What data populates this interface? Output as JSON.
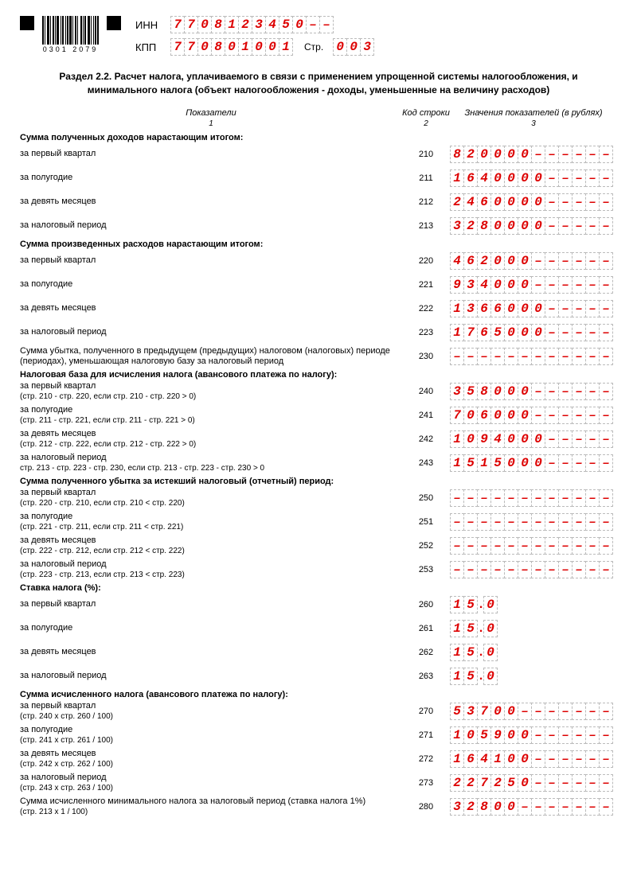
{
  "header": {
    "barcode_num": "0301 2079",
    "inn_label": "ИНН",
    "inn": [
      "7",
      "7",
      "0",
      "8",
      "1",
      "2",
      "3",
      "4",
      "5",
      "0",
      "–",
      "–"
    ],
    "kpp_label": "КПП",
    "kpp": [
      "7",
      "7",
      "0",
      "8",
      "0",
      "1",
      "0",
      "0",
      "1"
    ],
    "str_label": "Стр.",
    "str": [
      "0",
      "0",
      "3"
    ]
  },
  "section_title": "Раздел 2.2. Расчет налога, уплачиваемого в связи с применением упрощенной системы налогообложения, и минимального налога (объект налогообложения - доходы, уменьшенные на величину расходов)",
  "col_heads": {
    "c1": "Показатели",
    "c2": "Код строки",
    "c3": "Значения показателей (в рублях)"
  },
  "col_nums": {
    "c1": "1",
    "c2": "2",
    "c3": "3"
  },
  "groups": [
    {
      "title": "Сумма полученных доходов нарастающим итогом:",
      "rows": [
        {
          "label": "за первый квартал",
          "code": "210",
          "cells": [
            "8",
            "2",
            "0",
            "0",
            "0",
            "0",
            "–",
            "–",
            "–",
            "–",
            "–",
            "–"
          ]
        },
        {
          "label": "за полугодие",
          "code": "211",
          "cells": [
            "1",
            "6",
            "4",
            "0",
            "0",
            "0",
            "0",
            "–",
            "–",
            "–",
            "–",
            "–"
          ]
        },
        {
          "label": "за девять месяцев",
          "code": "212",
          "cells": [
            "2",
            "4",
            "6",
            "0",
            "0",
            "0",
            "0",
            "–",
            "–",
            "–",
            "–",
            "–"
          ]
        },
        {
          "label": "за налоговый период",
          "code": "213",
          "cells": [
            "3",
            "2",
            "8",
            "0",
            "0",
            "0",
            "0",
            "–",
            "–",
            "–",
            "–",
            "–"
          ]
        }
      ]
    },
    {
      "title": "Сумма произведенных расходов нарастающим итогом:",
      "rows": [
        {
          "label": "за первый квартал",
          "code": "220",
          "cells": [
            "4",
            "6",
            "2",
            "0",
            "0",
            "0",
            "–",
            "–",
            "–",
            "–",
            "–",
            "–"
          ]
        },
        {
          "label": "за полугодие",
          "code": "221",
          "cells": [
            "9",
            "3",
            "4",
            "0",
            "0",
            "0",
            "–",
            "–",
            "–",
            "–",
            "–",
            "–"
          ]
        },
        {
          "label": "за девять месяцев",
          "code": "222",
          "cells": [
            "1",
            "3",
            "6",
            "6",
            "0",
            "0",
            "0",
            "–",
            "–",
            "–",
            "–",
            "–"
          ]
        },
        {
          "label": "за налоговый период",
          "code": "223",
          "cells": [
            "1",
            "7",
            "6",
            "5",
            "0",
            "0",
            "0",
            "–",
            "–",
            "–",
            "–",
            "–"
          ]
        }
      ]
    },
    {
      "title": "",
      "rows": [
        {
          "label": "Сумма убытка, полученного в предыдущем (предыдущих) налоговом (налоговых) периоде (периодах), уменьшающая налоговую базу за налоговый период",
          "code": "230",
          "cells": [
            "–",
            "–",
            "–",
            "–",
            "–",
            "–",
            "–",
            "–",
            "–",
            "–",
            "–",
            "–"
          ]
        }
      ]
    },
    {
      "title": "Налоговая база для исчисления налога (авансового платежа по налогу):",
      "rows": [
        {
          "label": "за первый квартал",
          "sub": "(стр. 210 - стр. 220, если стр. 210 - стр. 220 > 0)",
          "code": "240",
          "cells": [
            "3",
            "5",
            "8",
            "0",
            "0",
            "0",
            "–",
            "–",
            "–",
            "–",
            "–",
            "–"
          ]
        },
        {
          "label": "за полугодие",
          "sub": "(стр. 211 - стр. 221, если стр. 211 - стр. 221 > 0)",
          "code": "241",
          "cells": [
            "7",
            "0",
            "6",
            "0",
            "0",
            "0",
            "–",
            "–",
            "–",
            "–",
            "–",
            "–"
          ]
        },
        {
          "label": "за девять месяцев",
          "sub": "(стр. 212 - стр. 222, если стр. 212 - стр. 222 > 0)",
          "code": "242",
          "cells": [
            "1",
            "0",
            "9",
            "4",
            "0",
            "0",
            "0",
            "–",
            "–",
            "–",
            "–",
            "–"
          ]
        },
        {
          "label": "за налоговый период",
          "sub": "стр. 213 - стр. 223 - стр. 230, если стр. 213 - стр. 223 - стр. 230 > 0",
          "code": "243",
          "cells": [
            "1",
            "5",
            "1",
            "5",
            "0",
            "0",
            "0",
            "–",
            "–",
            "–",
            "–",
            "–"
          ]
        }
      ]
    },
    {
      "title": "Сумма полученного убытка за истекший налоговый (отчетный) период:",
      "rows": [
        {
          "label": "за первый квартал",
          "sub": "(стр. 220 - стр. 210, если стр. 210 < стр. 220)",
          "code": "250",
          "cells": [
            "–",
            "–",
            "–",
            "–",
            "–",
            "–",
            "–",
            "–",
            "–",
            "–",
            "–",
            "–"
          ]
        },
        {
          "label": "за полугодие",
          "sub": "(стр. 221 - стр. 211, если стр. 211 < стр. 221)",
          "code": "251",
          "cells": [
            "–",
            "–",
            "–",
            "–",
            "–",
            "–",
            "–",
            "–",
            "–",
            "–",
            "–",
            "–"
          ]
        },
        {
          "label": "за девять месяцев",
          "sub": "(стр. 222 - стр. 212, если стр. 212 < стр. 222)",
          "code": "252",
          "cells": [
            "–",
            "–",
            "–",
            "–",
            "–",
            "–",
            "–",
            "–",
            "–",
            "–",
            "–",
            "–"
          ]
        },
        {
          "label": "за налоговый период",
          "sub": "(стр. 223 - стр. 213, если стр. 213 < стр. 223)",
          "code": "253",
          "cells": [
            "–",
            "–",
            "–",
            "–",
            "–",
            "–",
            "–",
            "–",
            "–",
            "–",
            "–",
            "–"
          ]
        }
      ]
    },
    {
      "title": "Ставка налога (%):",
      "rows": [
        {
          "label": "за первый квартал",
          "code": "260",
          "rate": [
            "1",
            "5",
            ".",
            "0"
          ]
        },
        {
          "label": "за полугодие",
          "code": "261",
          "rate": [
            "1",
            "5",
            ".",
            "0"
          ]
        },
        {
          "label": "за девять месяцев",
          "code": "262",
          "rate": [
            "1",
            "5",
            ".",
            "0"
          ]
        },
        {
          "label": "за налоговый период",
          "code": "263",
          "rate": [
            "1",
            "5",
            ".",
            "0"
          ]
        }
      ]
    },
    {
      "title": "Сумма исчисленного налога (авансового платежа по налогу):",
      "rows": [
        {
          "label": "за первый квартал",
          "sub": "(стр. 240 х стр. 260 / 100)",
          "code": "270",
          "cells": [
            "5",
            "3",
            "7",
            "0",
            "0",
            "–",
            "–",
            "–",
            "–",
            "–",
            "–",
            "–"
          ]
        },
        {
          "label": "за полугодие",
          "sub": "(стр. 241 х стр. 261 / 100)",
          "code": "271",
          "cells": [
            "1",
            "0",
            "5",
            "9",
            "0",
            "0",
            "–",
            "–",
            "–",
            "–",
            "–",
            "–"
          ]
        },
        {
          "label": "за девять месяцев",
          "sub": "(стр. 242 х стр. 262 / 100)",
          "code": "272",
          "cells": [
            "1",
            "6",
            "4",
            "1",
            "0",
            "0",
            "–",
            "–",
            "–",
            "–",
            "–",
            "–"
          ]
        },
        {
          "label": "за налоговый период",
          "sub": "(стр. 243 х стр. 263 / 100)",
          "code": "273",
          "cells": [
            "2",
            "2",
            "7",
            "2",
            "5",
            "0",
            "–",
            "–",
            "–",
            "–",
            "–",
            "–"
          ]
        },
        {
          "label": "Сумма исчисленного минимального налога за налоговый период (ставка налога 1%)",
          "sub": "(стр. 213 х 1 / 100)",
          "code": "280",
          "cells": [
            "3",
            "2",
            "8",
            "0",
            "0",
            "–",
            "–",
            "–",
            "–",
            "–",
            "–",
            "–"
          ]
        }
      ]
    }
  ],
  "style": {
    "cell_border": "#bbbbbb",
    "value_color": "#dd0000",
    "text_color": "#000000",
    "background": "#ffffff"
  }
}
